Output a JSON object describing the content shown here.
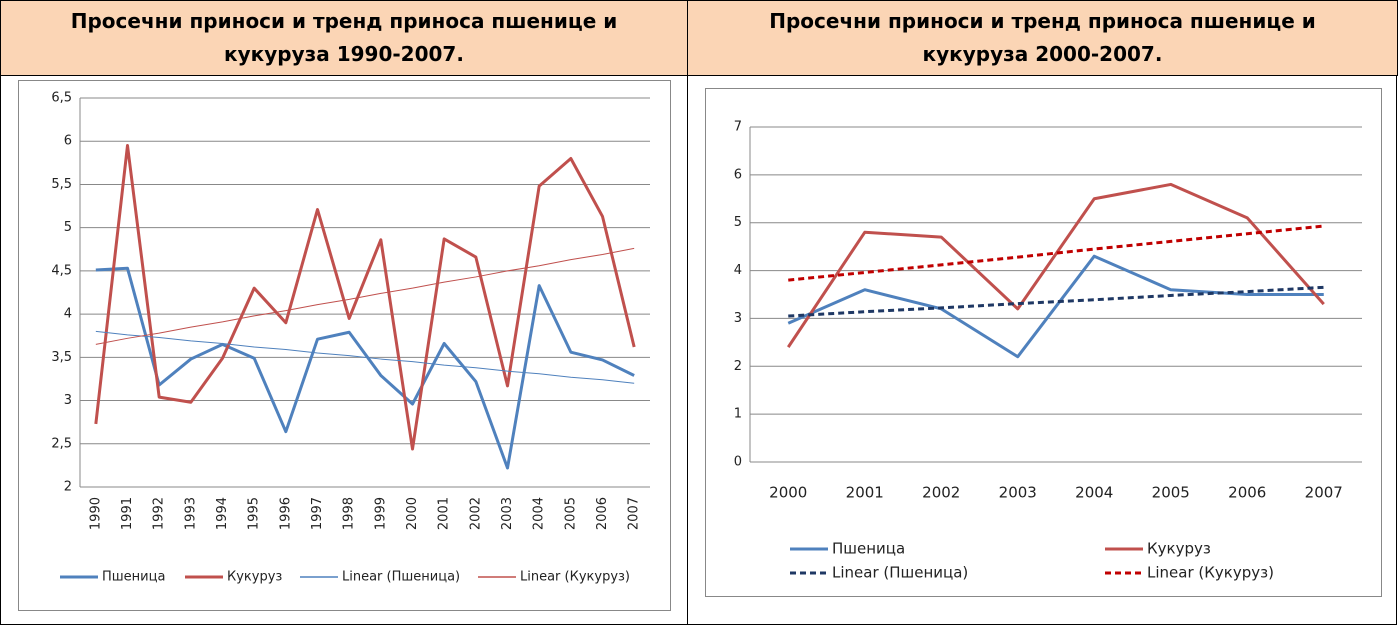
{
  "chart_data": [
    {
      "type": "line",
      "title": "Просечни приноси и тренд приноса пшенице и кукуруза 1990-2007.",
      "categories": [
        "1990",
        "1991",
        "1992",
        "1993",
        "1994",
        "1995",
        "1996",
        "1997",
        "1998",
        "1999",
        "2000",
        "2001",
        "2002",
        "2003",
        "2004",
        "2005",
        "2006",
        "2007"
      ],
      "ylim": [
        2,
        6.5
      ],
      "yticks": [
        2,
        {
          "value": 2.5,
          "label": "2,5"
        },
        3,
        {
          "value": 3.5,
          "label": "3,5"
        },
        4,
        {
          "value": 4.5,
          "label": "4,5"
        },
        5,
        {
          "value": 5.5,
          "label": "5,5"
        },
        6,
        {
          "value": 6.5,
          "label": "6,5"
        }
      ],
      "grid": true,
      "legend": "bottom",
      "series": [
        {
          "name": "Пшеница",
          "color": "#4f81bd",
          "linestyle": "solid",
          "values": [
            4.51,
            4.53,
            3.18,
            3.48,
            3.65,
            3.49,
            2.64,
            3.71,
            3.79,
            3.29,
            2.96,
            3.66,
            3.22,
            2.22,
            4.33,
            3.56,
            3.47,
            3.29
          ]
        },
        {
          "name": "Кукуруз",
          "color": "#c0504d",
          "linestyle": "solid",
          "values": [
            2.73,
            5.95,
            3.04,
            2.98,
            3.49,
            4.3,
            3.9,
            5.21,
            3.95,
            4.86,
            2.44,
            4.87,
            4.66,
            3.17,
            5.48,
            5.8,
            5.13,
            3.62
          ]
        },
        {
          "name": "Linear (Пшеница)",
          "color": "#4f81bd",
          "linestyle": "solid",
          "trendline": true,
          "values": [
            3.8,
            3.76,
            3.73,
            3.69,
            3.66,
            3.62,
            3.59,
            3.55,
            3.52,
            3.48,
            3.45,
            3.41,
            3.38,
            3.34,
            3.31,
            3.27,
            3.24,
            3.2
          ]
        },
        {
          "name": "Linear (Кукуруз)",
          "color": "#c0504d",
          "linestyle": "solid",
          "trendline": true,
          "values": [
            3.65,
            3.72,
            3.78,
            3.85,
            3.91,
            3.98,
            4.04,
            4.11,
            4.17,
            4.24,
            4.3,
            4.37,
            4.43,
            4.5,
            4.56,
            4.63,
            4.69,
            4.76
          ]
        }
      ]
    },
    {
      "type": "line",
      "title": "Просечни приноси и тренд приноса пшенице и кукуруза 2000-2007.",
      "categories": [
        "2000",
        "2001",
        "2002",
        "2003",
        "2004",
        "2005",
        "2006",
        "2007"
      ],
      "ylim": [
        0,
        7
      ],
      "yticks": [
        0,
        1,
        2,
        3,
        4,
        5,
        6,
        7
      ],
      "grid": true,
      "legend": "bottom",
      "series": [
        {
          "name": "Пшеница",
          "color": "#4f81bd",
          "linestyle": "solid",
          "values": [
            2.9,
            3.6,
            3.2,
            2.2,
            4.3,
            3.6,
            3.5,
            3.5
          ]
        },
        {
          "name": "Кукуруз",
          "color": "#c0504d",
          "linestyle": "solid",
          "values": [
            2.4,
            4.8,
            4.7,
            3.2,
            5.5,
            5.8,
            5.1,
            3.3
          ]
        },
        {
          "name": "Linear (Пшеница)",
          "color": "#1f3864",
          "linestyle": "dashed",
          "trendline": true,
          "values": [
            3.05,
            3.14,
            3.22,
            3.31,
            3.39,
            3.48,
            3.56,
            3.65
          ]
        },
        {
          "name": "Linear (Кукуруз)",
          "color": "#c00000",
          "linestyle": "dashed",
          "trendline": true,
          "values": [
            3.8,
            3.96,
            4.12,
            4.28,
            4.45,
            4.61,
            4.77,
            4.93
          ]
        }
      ]
    }
  ]
}
